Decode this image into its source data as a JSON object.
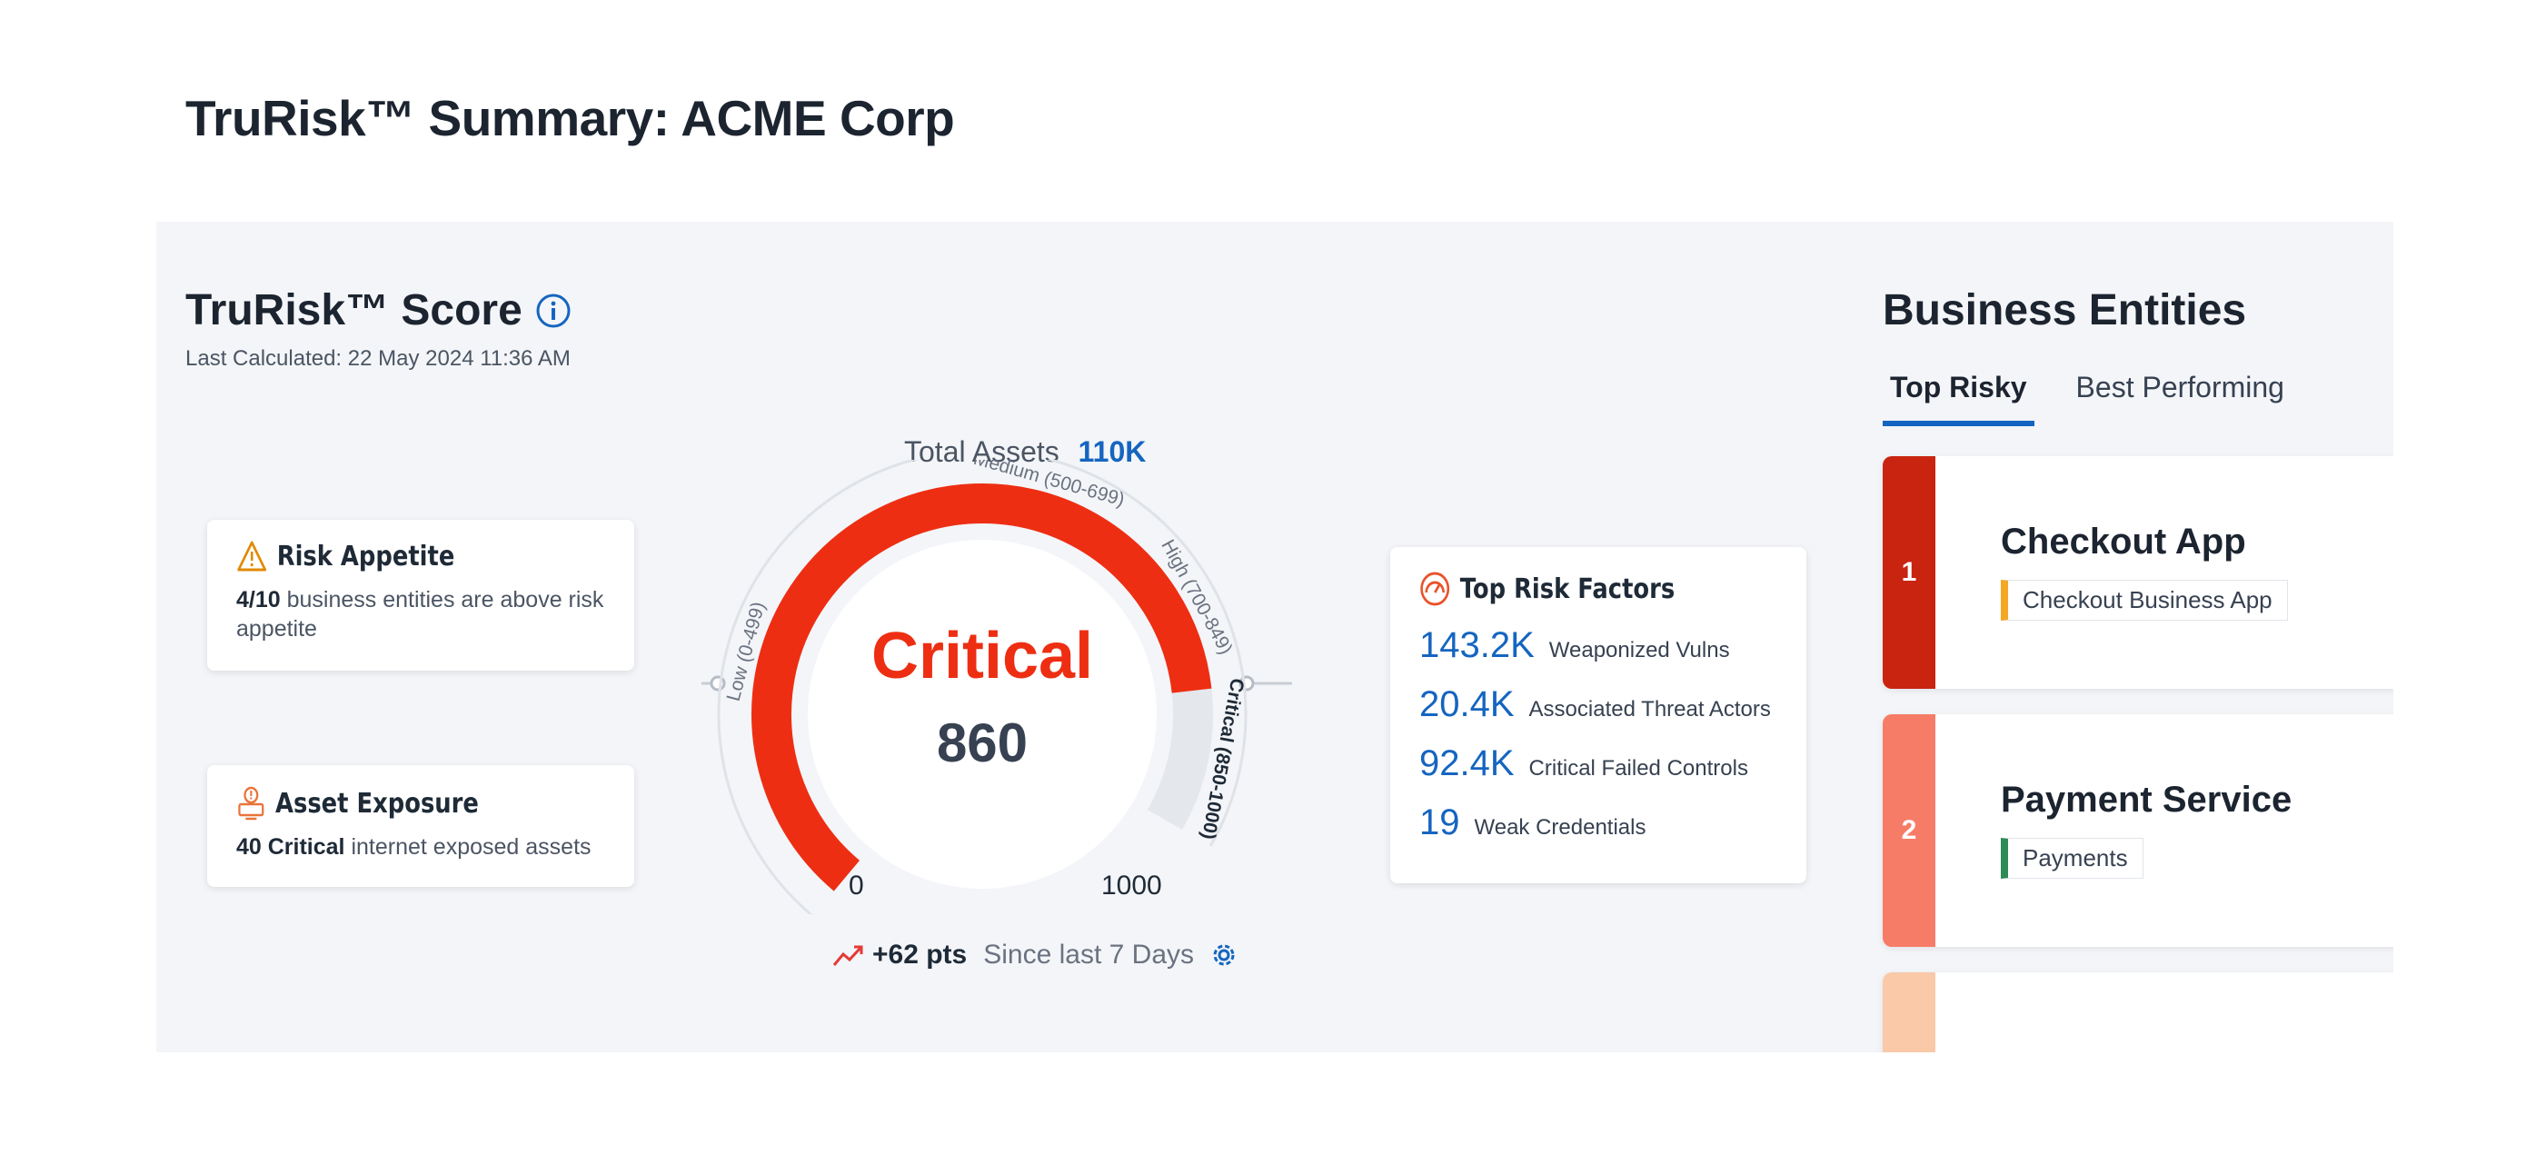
{
  "page_title": "TruRisk™ Summary: ACME Corp",
  "score_panel": {
    "title": "TruRisk™ Score",
    "last_calculated_label": "Last Calculated:",
    "last_calculated_value": "22 May 2024 11:36 AM",
    "total_assets_label": "Total Assets",
    "total_assets_value": "110K"
  },
  "risk_appetite": {
    "title": "Risk Appetite",
    "count": "4/10",
    "text": "business entities are above risk appetite"
  },
  "asset_exposure": {
    "title": "Asset Exposure",
    "count": "40 Critical",
    "text": "internet exposed assets"
  },
  "gauge": {
    "severity": "Critical",
    "score": "860",
    "score_value": 860,
    "min_label": "0",
    "max_label": "1000",
    "min": 0,
    "max": 1000,
    "bands": [
      {
        "label": "Low (0-499)",
        "from": 0,
        "to": 499,
        "color": "#dfe3e8"
      },
      {
        "label": "Medium (500-699)",
        "from": 500,
        "to": 699,
        "color": "#dfe3e8"
      },
      {
        "label": "High (700-849)",
        "from": 700,
        "to": 849,
        "color": "#dfe3e8"
      },
      {
        "label": "Critical (850-1000)",
        "from": 850,
        "to": 1000,
        "color": "#dfe3e8"
      }
    ],
    "fill_color": "#ee2e12"
  },
  "trend": {
    "delta": "+62 pts",
    "since": "Since last 7 Days"
  },
  "top_risk_factors": {
    "title": "Top Risk Factors",
    "items": [
      {
        "value": "143.2K",
        "label": "Weaponized Vulns"
      },
      {
        "value": "20.4K",
        "label": "Associated Threat Actors"
      },
      {
        "value": "92.4K",
        "label": "Critical Failed Controls"
      },
      {
        "value": "19",
        "label": "Weak Credentials"
      }
    ]
  },
  "business_entities": {
    "title": "Business Entities",
    "tabs": [
      {
        "label": "Top Risky",
        "active": true
      },
      {
        "label": "Best Performing",
        "active": false
      }
    ],
    "entities": [
      {
        "rank": "1",
        "name": "Checkout App",
        "tag": "Checkout Business App",
        "rank_color": "#c9240f",
        "tag_color": "#f5a623"
      },
      {
        "rank": "2",
        "name": "Payment Service",
        "tag": "Payments",
        "rank_color": "#f77c68",
        "tag_color": "#2e8b57"
      },
      {
        "rank": "",
        "name": "",
        "tag": "",
        "rank_color": "#f9c9a8",
        "tag_color": "#cccccc"
      }
    ]
  },
  "icons": {
    "info": "info-icon",
    "risk_appetite": "warning-icon",
    "asset_exposure": "monitor-alert-icon",
    "top_risk_factors": "gauge-icon",
    "trend": "trend-up-icon",
    "settings": "gear-icon"
  }
}
